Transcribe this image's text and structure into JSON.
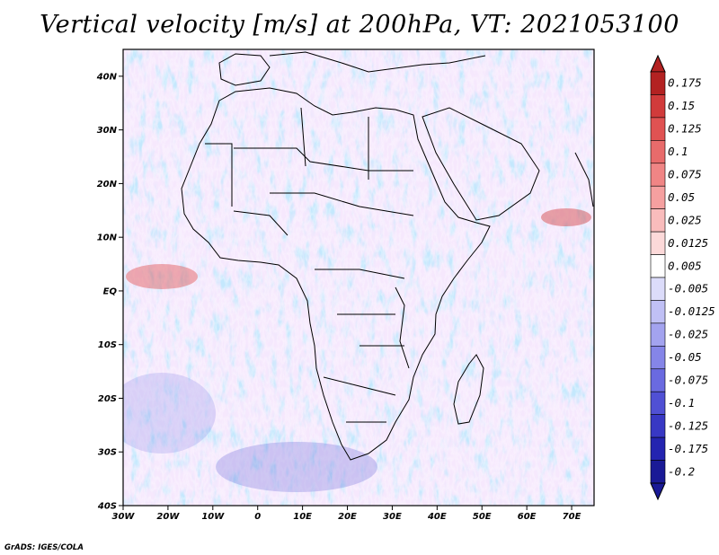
{
  "title": "Vertical velocity [m/s] at 200hPa, VT: 2021053100",
  "credit": "GrADS: IGES/COLA",
  "map": {
    "lon_range": [
      -30,
      75
    ],
    "lat_range": [
      -40,
      45
    ],
    "lat_ticks": [
      {
        "lat": 40,
        "label": "40N"
      },
      {
        "lat": 30,
        "label": "30N"
      },
      {
        "lat": 20,
        "label": "20N"
      },
      {
        "lat": 10,
        "label": "10N"
      },
      {
        "lat": 0,
        "label": "EQ"
      },
      {
        "lat": -10,
        "label": "10S"
      },
      {
        "lat": -20,
        "label": "20S"
      },
      {
        "lat": -30,
        "label": "30S"
      },
      {
        "lat": -40,
        "label": "40S"
      }
    ],
    "lon_ticks": [
      {
        "lon": -30,
        "label": "30W"
      },
      {
        "lon": -20,
        "label": "20W"
      },
      {
        "lon": -10,
        "label": "10W"
      },
      {
        "lon": 0,
        "label": "0"
      },
      {
        "lon": 10,
        "label": "10E"
      },
      {
        "lon": 20,
        "label": "20E"
      },
      {
        "lon": 30,
        "label": "30E"
      },
      {
        "lon": 40,
        "label": "40E"
      },
      {
        "lon": 50,
        "label": "50E"
      },
      {
        "lon": 60,
        "label": "60E"
      },
      {
        "lon": 70,
        "label": "70E"
      }
    ]
  },
  "colorbar": {
    "labels": [
      "0.175",
      "0.15",
      "0.125",
      "0.1",
      "0.075",
      "0.05",
      "0.025",
      "0.0125",
      "0.005",
      "-0.005",
      "-0.0125",
      "-0.025",
      "-0.05",
      "-0.075",
      "-0.1",
      "-0.125",
      "-0.175",
      "-0.2"
    ],
    "colors": [
      "#b32222",
      "#d13b3b",
      "#e05252",
      "#e86b6b",
      "#f08585",
      "#f5a0a0",
      "#f9bcbc",
      "#fcd9d9",
      "#ffffff",
      "#dcdcfa",
      "#c0c0f5",
      "#a3a3ef",
      "#8585e8",
      "#6a6ae0",
      "#5050d4",
      "#3838c4",
      "#2424b0",
      "#1a1a96"
    ]
  }
}
